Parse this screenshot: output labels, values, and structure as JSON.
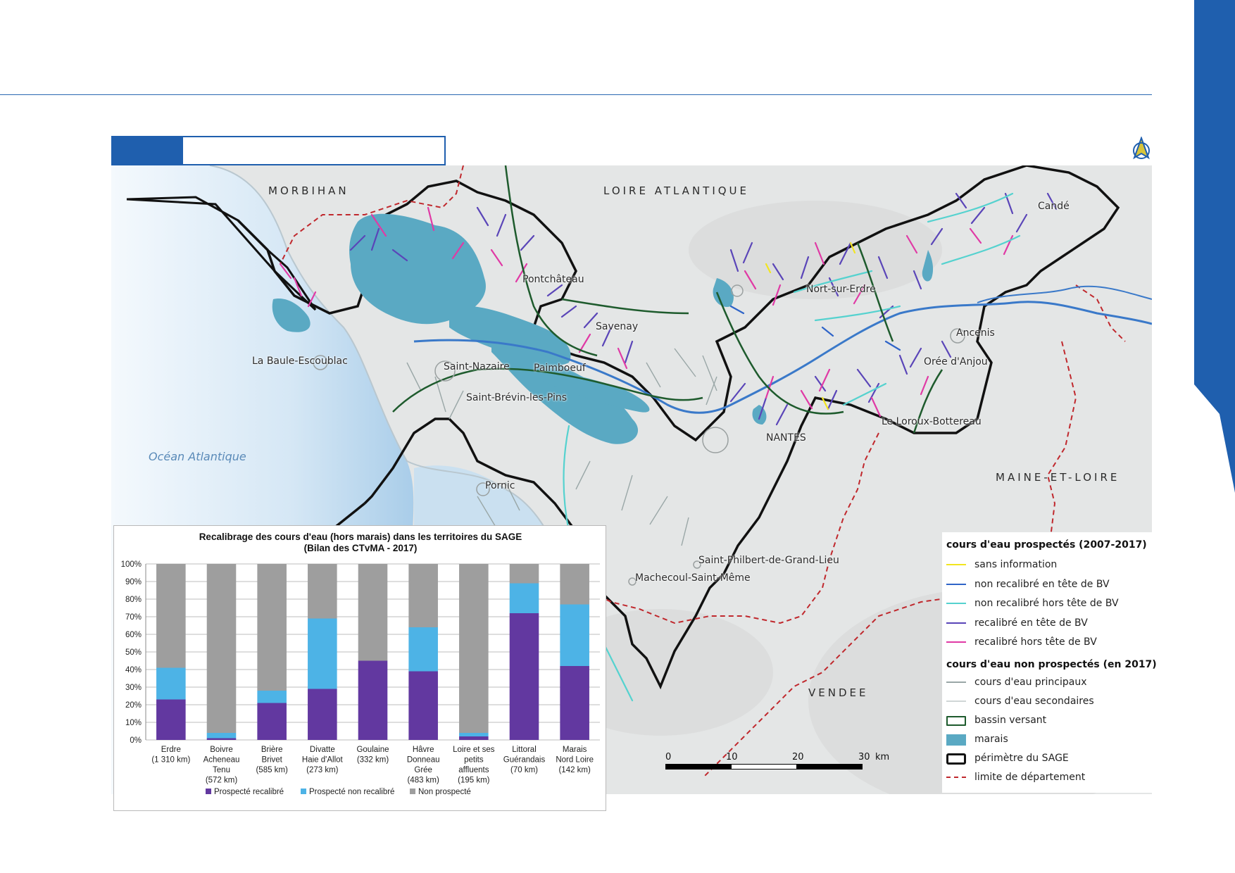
{
  "map": {
    "regions": {
      "morbihan": "MORBIHAN",
      "loire_atlantique": "LOIRE ATLANTIQUE",
      "maine_et_loire": "MAINE-ET-LOIRE",
      "vendee": "VENDEE"
    },
    "ocean": "Océan Atlantique",
    "places": {
      "conde": "Candé",
      "pontchateau": "Pontchâteau",
      "nort": "Nort-sur-Erdre",
      "savenay": "Savenay",
      "ancenis": "Ancenis",
      "la_baule": "La Baule-Escoublac",
      "saint_nazaire": "Saint-Nazaire",
      "paimboeuf": "Paimboeuf",
      "oree": "Orée d'Anjou",
      "saint_brevin": "Saint-Brévin-les-Pins",
      "loroux": "Le Loroux-Bottereau",
      "nantes": "NANTES",
      "pornic": "Pornic",
      "saint_philbert": "Saint-Philbert-de-Grand-Lieu",
      "machecoul": "Machecoul-Saint-Même"
    },
    "colors": {
      "marais": "#5aa9c3",
      "bassin": "#1e5b2d",
      "perimetre": "#111111",
      "departement": "#c0282d",
      "ocean": "#cde3f2"
    }
  },
  "legend": {
    "prospected_header": "cours d'eau prospectés (2007-2017)",
    "prospected": [
      {
        "label": "sans information",
        "color": "#f2e51f"
      },
      {
        "label": "non recalibré en tête de BV",
        "color": "#2f64c8"
      },
      {
        "label": "non recalibré hors tête de BV",
        "color": "#55d2cf"
      },
      {
        "label": "recalibré en tête de BV",
        "color": "#5a45b8"
      },
      {
        "label": "recalibré hors tête de BV",
        "color": "#e03aa5"
      }
    ],
    "non_prospected_header": "cours d'eau non prospectés (en 2017)",
    "non_prospected": [
      {
        "label": "cours d'eau principaux",
        "color": "#9aa7a7"
      },
      {
        "label": "cours d'eau secondaires",
        "color": "#d0d6d6"
      }
    ],
    "bassin": "bassin versant",
    "marais": "marais",
    "perimetre": "périmètre du SAGE",
    "departement": "limite de département"
  },
  "scale": {
    "ticks": [
      "0",
      "10",
      "20",
      "30"
    ],
    "unit": "km"
  },
  "chart_data": {
    "type": "bar",
    "stacked": true,
    "title": "Recalibrage des cours d'eau (hors marais) dans les territoires du SAGE",
    "subtitle": "(Bilan des CTvMA - 2017)",
    "categories": [
      [
        "Erdre",
        "(1 310 km)"
      ],
      [
        "Boivre",
        "Acheneau",
        "Tenu",
        "(572 km)"
      ],
      [
        "Brière",
        "Brivet",
        "(585 km)"
      ],
      [
        "Divatte",
        "Haie d'Allot",
        "(273 km)"
      ],
      [
        "Goulaine",
        "(332 km)"
      ],
      [
        "Hâvre",
        "Donneau",
        "Grée",
        "(483 km)"
      ],
      [
        "Loire et ses",
        "petits",
        "affluents",
        "(195 km)"
      ],
      [
        "Littoral",
        "Guérandais",
        "(70 km)"
      ],
      [
        "Marais",
        "Nord Loire",
        "(142 km)"
      ]
    ],
    "series": [
      {
        "name": "Prospecté recalibré",
        "color": "#6238a0",
        "values": [
          23,
          1,
          21,
          29,
          45,
          39,
          2,
          72,
          42
        ]
      },
      {
        "name": "Prospecté non recalibré",
        "color": "#4db3e6",
        "values": [
          18,
          3,
          7,
          40,
          0,
          25,
          2,
          17,
          35
        ]
      },
      {
        "name": "Non prospecté",
        "color": "#9e9e9e",
        "values": [
          59,
          96,
          72,
          31,
          55,
          36,
          96,
          11,
          23
        ]
      }
    ],
    "yticks": [
      "0%",
      "10%",
      "20%",
      "30%",
      "40%",
      "50%",
      "60%",
      "70%",
      "80%",
      "90%",
      "100%"
    ],
    "ylim": [
      0,
      100
    ],
    "grid": true,
    "legend_position": "bottom"
  }
}
